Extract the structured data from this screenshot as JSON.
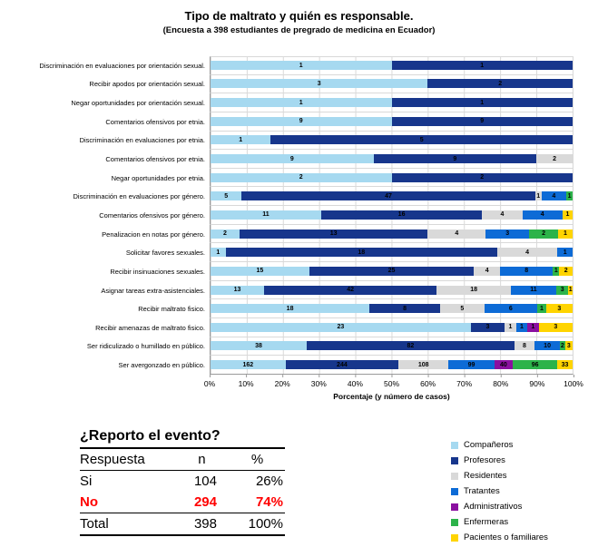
{
  "chart_data": {
    "type": "bar",
    "stacked": true,
    "orientation": "horizontal",
    "title": "Tipo de maltrato y quién es responsable.",
    "subtitle": "(Encuesta a 398 estudiantes de pregrado de medicina en Ecuador)",
    "xlabel": "Porcentaje (y número de casos)",
    "xlim": [
      0,
      100
    ],
    "x_tick_labels": [
      "0%",
      "10%",
      "20%",
      "30%",
      "40%",
      "50%",
      "60%",
      "70%",
      "80%",
      "90%",
      "100%"
    ],
    "grid": "vertical every 10%",
    "legend_position": "bottom-right",
    "bar_value_labels": "count shown inside each segment",
    "categories": [
      "Discriminación en evaluaciones por orientación sexual.",
      "Recibir apodos por orientación sexual.",
      "Negar oportunidades por orientación sexual.",
      "Comentarios ofensivos por etnia.",
      "Discriminación en evaluaciones por etnia.",
      "Comentarios ofensivos por etnia.",
      "Negar oportunidades por etnia.",
      "Discriminación en evaluaciones por género.",
      "Comentarios ofensivos por género.",
      "Penalizacion en notas por género.",
      "Solicitar favores sexuales.",
      "Recibir insinuaciones sexuales.",
      "Asignar tareas extra-asistenciales.",
      "Recibir maltrato fisico.",
      "Recibir amenazas de maltrato fisico.",
      "Ser ridiculizado o humillado en público.",
      "Ser avergonzado en público."
    ],
    "series": [
      {
        "name": "Compañeros",
        "color": "#A6D9F0",
        "values": [
          1,
          3,
          1,
          9,
          1,
          9,
          2,
          5,
          11,
          2,
          1,
          15,
          13,
          18,
          23,
          38,
          162
        ]
      },
      {
        "name": "Profesores",
        "color": "#17368C",
        "values": [
          1,
          2,
          1,
          9,
          5,
          9,
          2,
          47,
          16,
          13,
          18,
          25,
          42,
          8,
          3,
          82,
          244
        ]
      },
      {
        "name": "Residentes",
        "color": "#D9D9D9",
        "values": [
          0,
          0,
          0,
          0,
          0,
          2,
          0,
          1,
          4,
          4,
          4,
          4,
          18,
          5,
          1,
          8,
          108
        ]
      },
      {
        "name": "Tratantes",
        "color": "#0D6BD6",
        "values": [
          0,
          0,
          0,
          0,
          0,
          0,
          0,
          4,
          4,
          3,
          1,
          8,
          11,
          6,
          1,
          10,
          99
        ]
      },
      {
        "name": "Administrativos",
        "color": "#8A10A0",
        "values": [
          0,
          0,
          0,
          0,
          0,
          0,
          0,
          0,
          0,
          0,
          0,
          0,
          0,
          0,
          1,
          0,
          40
        ]
      },
      {
        "name": "Enfermeras",
        "color": "#2CB34A",
        "values": [
          0,
          0,
          0,
          0,
          0,
          0,
          0,
          1,
          0,
          2,
          0,
          1,
          3,
          1,
          0,
          2,
          96
        ]
      },
      {
        "name": "Pacientes o familiares",
        "color": "#FFD400",
        "values": [
          0,
          0,
          0,
          0,
          0,
          0,
          0,
          0,
          1,
          1,
          0,
          2,
          1,
          3,
          3,
          3,
          33
        ]
      }
    ]
  },
  "report_table": {
    "title": "¿Reporto el evento?",
    "headers": [
      "Respuesta",
      "n",
      "%"
    ],
    "rows": [
      {
        "respuesta": "Si",
        "n": "104",
        "pct": "26%",
        "highlight": false,
        "total": false
      },
      {
        "respuesta": "No",
        "n": "294",
        "pct": "74%",
        "highlight": true,
        "total": false
      },
      {
        "respuesta": "Total",
        "n": "398",
        "pct": "100%",
        "highlight": false,
        "total": true
      }
    ],
    "highlight_color": "#FF0000"
  }
}
